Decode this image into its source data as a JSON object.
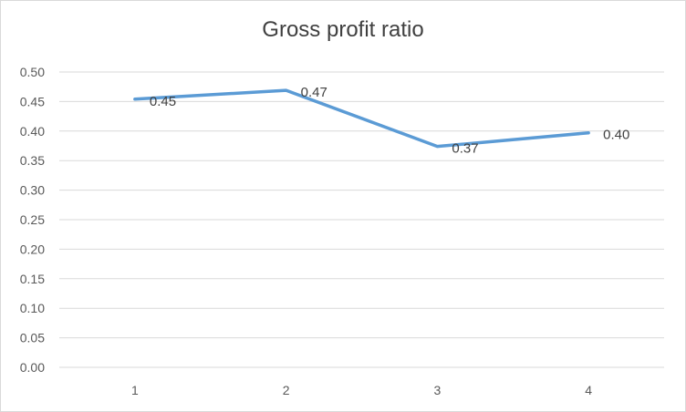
{
  "chart_data": {
    "type": "line",
    "title": "Gross profit ratio",
    "xlabel": "",
    "ylabel": "",
    "categories": [
      "1",
      "2",
      "3",
      "4"
    ],
    "series": [
      {
        "values": [
          0.454,
          0.469,
          0.374,
          0.397
        ],
        "data_labels": [
          "0.45",
          "0.47",
          "0.37",
          "0.40"
        ]
      }
    ],
    "ylim": [
      0,
      0.5
    ],
    "y_ticks": [
      "0.00",
      "0.05",
      "0.10",
      "0.15",
      "0.20",
      "0.25",
      "0.30",
      "0.35",
      "0.40",
      "0.45",
      "0.50"
    ],
    "grid": true,
    "legend": "none",
    "colors": {
      "line": "#5b9bd5",
      "grid": "#d9d9d9",
      "border": "#d9d9d9",
      "text": "#595959"
    }
  }
}
